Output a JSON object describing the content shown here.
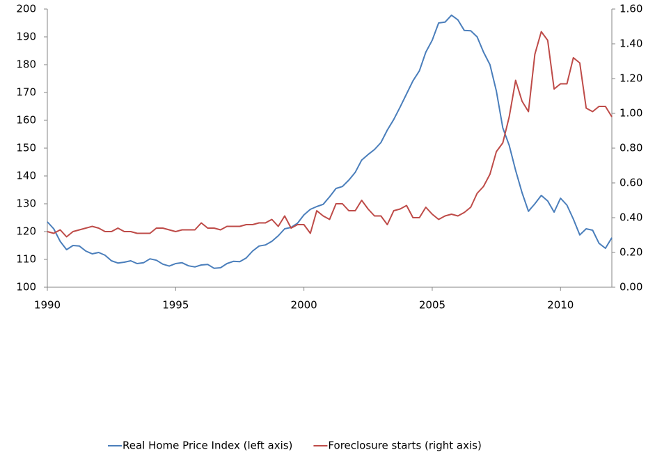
{
  "chart_data": {
    "type": "line",
    "x": [
      1990,
      1990.25,
      1990.5,
      1990.75,
      1991,
      1991.25,
      1991.5,
      1991.75,
      1992,
      1992.25,
      1992.5,
      1992.75,
      1993,
      1993.25,
      1993.5,
      1993.75,
      1994,
      1994.25,
      1994.5,
      1994.75,
      1995,
      1995.25,
      1995.5,
      1995.75,
      1996,
      1996.25,
      1996.5,
      1996.75,
      1997,
      1997.25,
      1997.5,
      1997.75,
      1998,
      1998.25,
      1998.5,
      1998.75,
      1999,
      1999.25,
      1999.5,
      1999.75,
      2000,
      2000.25,
      2000.5,
      2000.75,
      2001,
      2001.25,
      2001.5,
      2001.75,
      2002,
      2002.25,
      2002.5,
      2002.75,
      2003,
      2003.25,
      2003.5,
      2003.75,
      2004,
      2004.25,
      2004.5,
      2004.75,
      2005,
      2005.25,
      2005.5,
      2005.75,
      2006,
      2006.25,
      2006.5,
      2006.75,
      2007,
      2007.25,
      2007.5,
      2007.75,
      2008,
      2008.25,
      2008.5,
      2008.75,
      2009,
      2009.25,
      2009.5,
      2009.75,
      2010,
      2010.25,
      2010.5,
      2010.75,
      2011,
      2011.25,
      2011.5,
      2011.75,
      2012
    ],
    "series": [
      {
        "name": "Real Home Price Index (left axis)",
        "color": "#4a7ebb",
        "axis": "y",
        "values": [
          123.5,
          121,
          116.5,
          113.5,
          115,
          114.8,
          113,
          112,
          112.5,
          111.5,
          109.5,
          108.7,
          109,
          109.5,
          108.5,
          108.8,
          110.2,
          109.7,
          108.3,
          107.6,
          108.5,
          108.8,
          107.7,
          107.3,
          108,
          108.2,
          106.8,
          107,
          108.5,
          109.3,
          109.2,
          110.5,
          113,
          114.8,
          115.2,
          116.5,
          118.5,
          121,
          121.5,
          123,
          126,
          128,
          129,
          129.8,
          132.5,
          135.5,
          136.2,
          138.5,
          141.3,
          145.7,
          147.7,
          149.5,
          152,
          156.5,
          160.3,
          164.8,
          169.5,
          174.2,
          177.8,
          184.5,
          188.8,
          195,
          195.3,
          197.8,
          196.1,
          192.3,
          192.2,
          190,
          184.5,
          180,
          170.5,
          157.3,
          151,
          142,
          134,
          127.3,
          130,
          133,
          131,
          127,
          132,
          129.5,
          124.5,
          118.8,
          121,
          120.5,
          115.8,
          114,
          117.8
        ]
      },
      {
        "name": "Foreclosure starts (right axis)",
        "color": "#be4b48",
        "axis": "y2",
        "values": [
          0.32,
          0.31,
          0.33,
          0.29,
          0.32,
          0.33,
          0.34,
          0.35,
          0.34,
          0.32,
          0.32,
          0.34,
          0.32,
          0.32,
          0.31,
          0.31,
          0.31,
          0.34,
          0.34,
          0.33,
          0.32,
          0.33,
          0.33,
          0.33,
          0.37,
          0.34,
          0.34,
          0.33,
          0.35,
          0.35,
          0.35,
          0.36,
          0.36,
          0.37,
          0.37,
          0.39,
          0.35,
          0.41,
          0.34,
          0.36,
          0.36,
          0.31,
          0.44,
          0.41,
          0.39,
          0.48,
          0.48,
          0.44,
          0.44,
          0.5,
          0.45,
          0.41,
          0.41,
          0.36,
          0.44,
          0.45,
          0.47,
          0.4,
          0.4,
          0.46,
          0.42,
          0.39,
          0.41,
          0.42,
          0.41,
          0.43,
          0.46,
          0.54,
          0.58,
          0.65,
          0.78,
          0.83,
          0.98,
          1.19,
          1.07,
          1.01,
          1.34,
          1.47,
          1.42,
          1.14,
          1.17,
          1.17,
          1.32,
          1.29,
          1.03,
          1.01,
          1.04,
          1.04,
          0.98
        ]
      }
    ],
    "xlim": [
      1990,
      2012
    ],
    "xticks": [
      1990,
      1995,
      2000,
      2005,
      2010
    ],
    "ylim": [
      100,
      200
    ],
    "yticks": [
      100,
      110,
      120,
      130,
      140,
      150,
      160,
      170,
      180,
      190,
      200
    ],
    "y2lim": [
      0,
      1.6
    ],
    "y2ticks": [
      {
        "value": 0,
        "label": "0.00"
      },
      {
        "value": 0.2,
        "label": "0.20"
      },
      {
        "value": 0.4,
        "label": "0.40"
      },
      {
        "value": 0.6,
        "label": "0.60"
      },
      {
        "value": 0.8,
        "label": "0.80"
      },
      {
        "value": 1,
        "label": "1.00"
      },
      {
        "value": 1.2,
        "label": "1.20"
      },
      {
        "value": 1.4,
        "label": "1.40"
      },
      {
        "value": 1.6,
        "label": "1.60"
      }
    ],
    "grid": false,
    "legend": "bottom"
  }
}
